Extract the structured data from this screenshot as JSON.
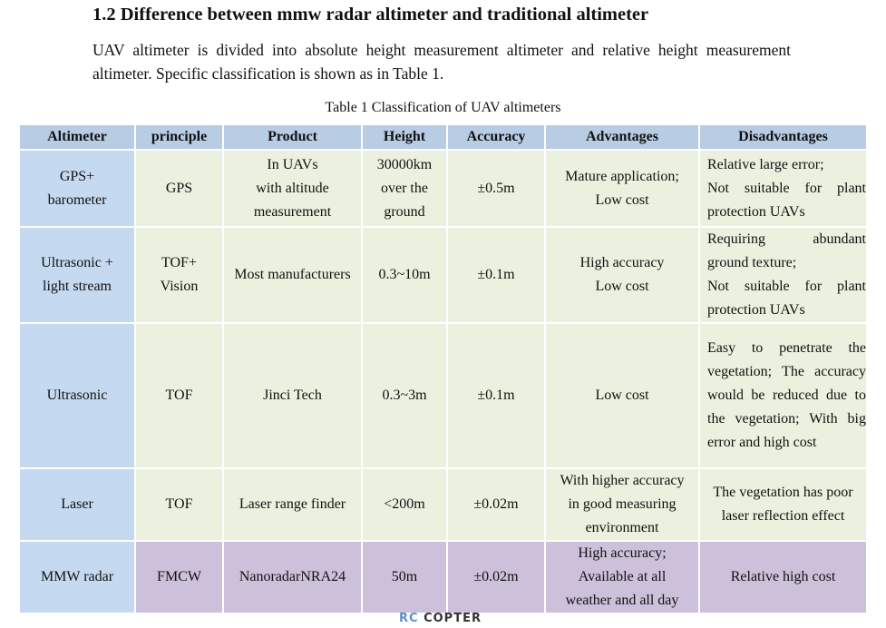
{
  "heading": "1.2 Difference between mmw radar altimeter and traditional altimeter",
  "paragraph": "UAV altimeter is divided into absolute height measurement altimeter and relative height measurement altimeter. Specific classification is shown as in Table 1.",
  "table": {
    "caption": "Table 1 Classification of UAV altimeters",
    "header": [
      "Altimeter",
      "principle",
      "Product",
      "Height",
      "Accuracy",
      "Advantages",
      "Disadvantages"
    ],
    "rows": [
      [
        "GPS+\nbarometer",
        "GPS",
        "In UAVs\nwith altitude\nmeasurement",
        "30000km\nover the\nground",
        "±0.5m",
        "Mature application;\nLow cost",
        "Relative large error;\nNot suitable for plant protection UAVs"
      ],
      [
        "Ultrasonic +\nlight stream",
        "TOF+\nVision",
        "Most manufacturers",
        "0.3~10m",
        "±0.1m",
        "High accuracy\nLow cost",
        "Requiring abundant ground texture;\nNot suitable for plant protection UAVs"
      ],
      [
        "Ultrasonic",
        "TOF",
        "Jinci Tech",
        "0.3~3m",
        "±0.1m",
        "Low cost",
        "Easy to penetrate the vegetation; The accuracy would be reduced due to the vegetation; With big error and high cost"
      ],
      [
        "Laser",
        "TOF",
        "Laser range finder",
        "<200m",
        "±0.02m",
        "With higher accuracy\nin good measuring\nenvironment",
        "The vegetation has poor\nlaser reflection effect"
      ],
      [
        "MMW radar",
        "FMCW",
        "NanoradarNRA24",
        "50m",
        "±0.02m",
        "High accuracy;\nAvailable at all\nweather and all day",
        "Relative high cost"
      ]
    ]
  },
  "watermark": {
    "left": "RC",
    "right": "COPTER"
  }
}
